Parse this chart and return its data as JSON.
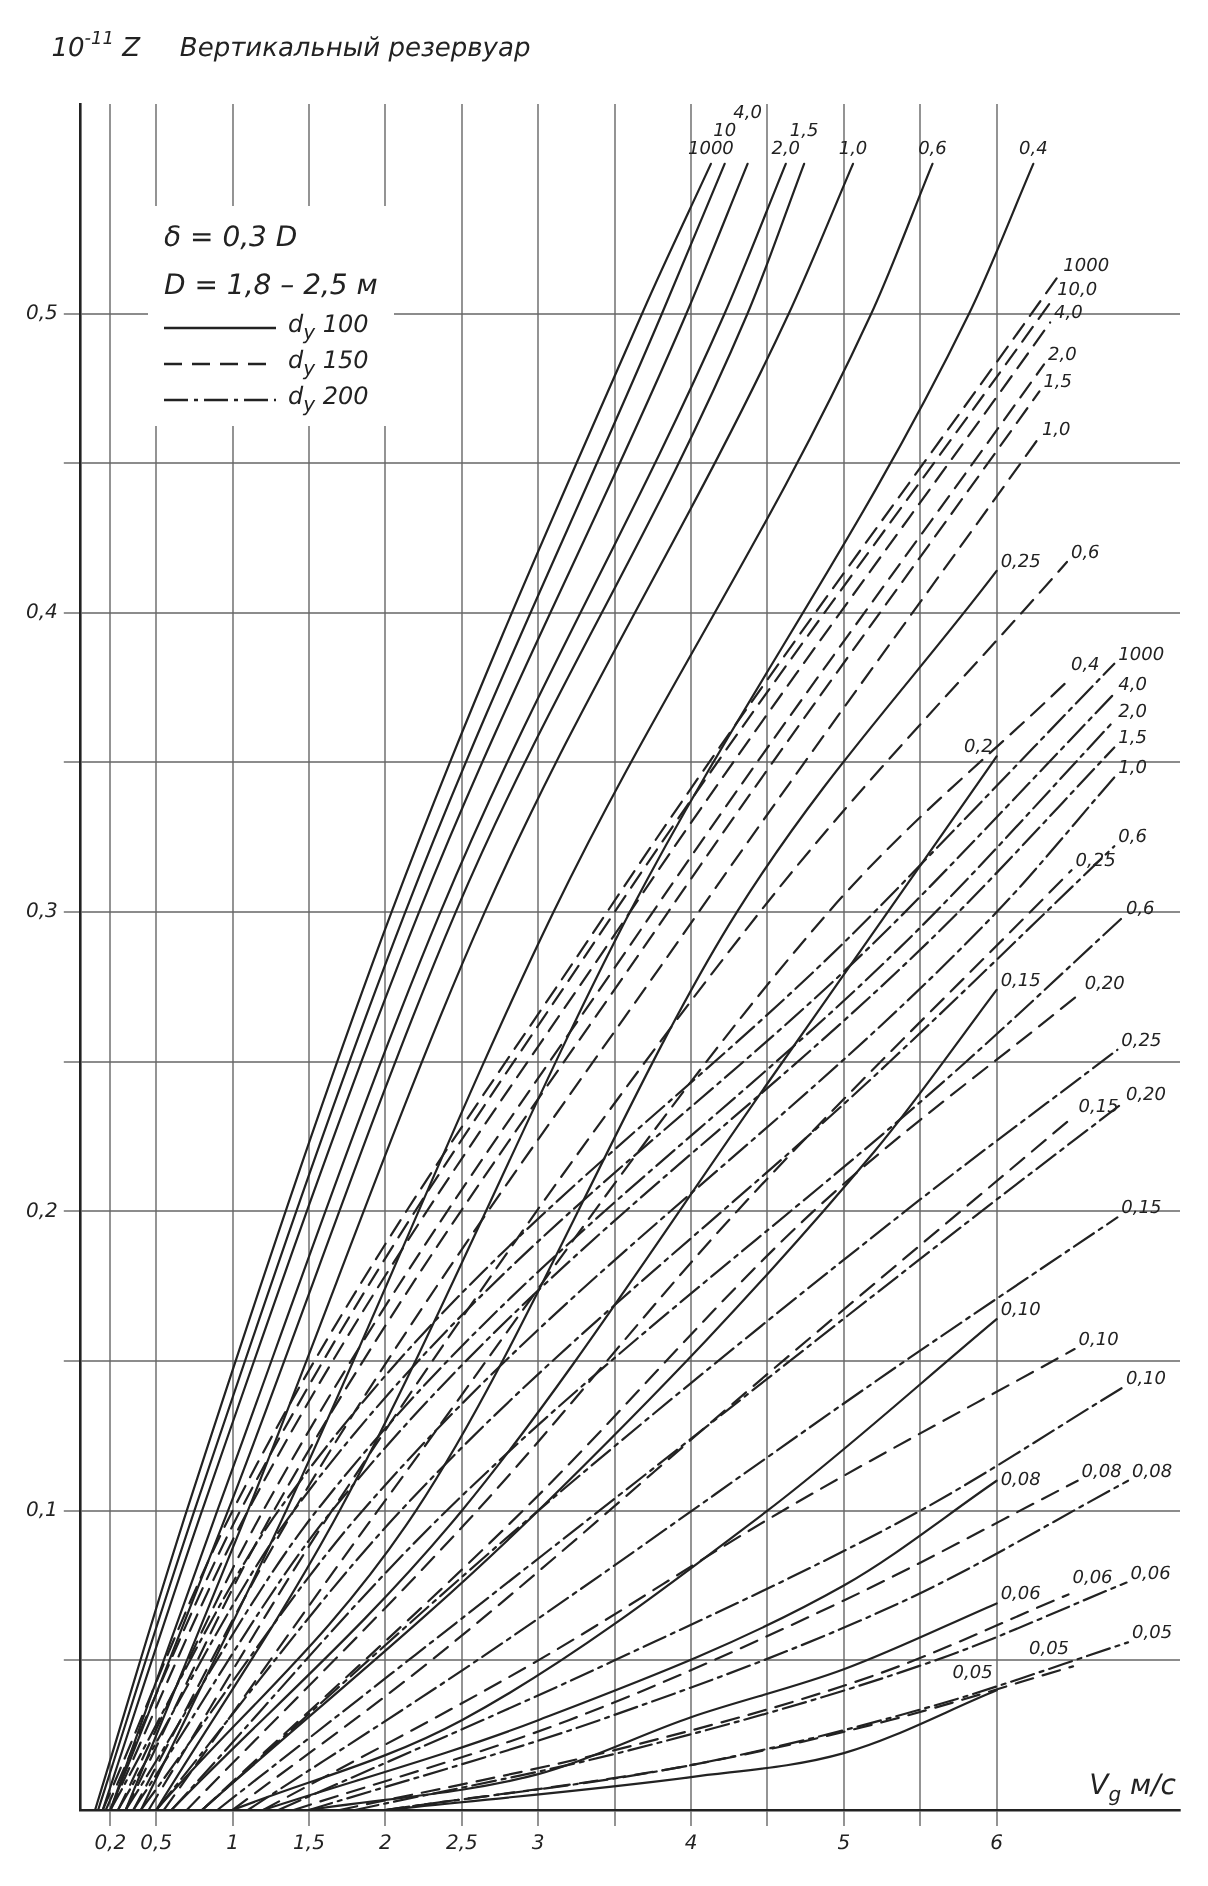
{
  "chart_data": {
    "type": "line",
    "title": "Вертикальный резервуар",
    "ylabel": "10$^{-11}$ Z",
    "xlabel": "V$_{g}$ м/с",
    "xlim": [
      0,
      7.2
    ],
    "ylim": [
      0,
      0.57
    ],
    "xticks": [
      {
        "value": 0.2,
        "label": "0,2"
      },
      {
        "value": 0.5,
        "label": "0,5"
      },
      1,
      {
        "value": 1.5,
        "label": "1,5"
      },
      2,
      {
        "value": 2.5,
        "label": "2,5"
      },
      3,
      {
        "value": 3.5,
        "label": null
      },
      4,
      {
        "value": 4.5,
        "label": null
      },
      5,
      {
        "value": 5.5,
        "label": null
      },
      6
    ],
    "yticks": [
      {
        "value": 0.05,
        "label": null
      },
      {
        "value": 0.1,
        "label": "0,1"
      },
      {
        "value": 0.15,
        "label": null
      },
      {
        "value": 0.2,
        "label": "0,2"
      },
      {
        "value": 0.25,
        "label": null
      },
      {
        "value": 0.3,
        "label": "0,3"
      },
      {
        "value": 0.35,
        "label": null
      },
      {
        "value": 0.4,
        "label": "0,4"
      },
      {
        "value": 0.45,
        "label": null
      },
      {
        "value": 0.5,
        "label": "0,5"
      }
    ],
    "grid": true,
    "marker": "none",
    "series": [
      {
        "name": "1000",
        "color": "#222222",
        "line_style": "solid",
        "x": [
          0.1,
          0.7,
          2.04,
          3.68,
          4.13
        ],
        "values": [
          0,
          0.1,
          0.3,
          0.5,
          0.55
        ]
      },
      {
        "name": "10",
        "color": "#222222",
        "line_style": "solid",
        "x": [
          0.12,
          0.75,
          2.13,
          3.81,
          4.22
        ],
        "values": [
          0,
          0.1,
          0.3,
          0.5,
          0.55
        ]
      },
      {
        "name": "4,0",
        "color": "#222222",
        "line_style": "solid",
        "x": [
          0.15,
          0.8,
          2.22,
          3.97,
          4.37
        ],
        "values": [
          0,
          0.1,
          0.3,
          0.5,
          0.55
        ]
      },
      {
        "name": "2,0",
        "color": "#222222",
        "line_style": "solid",
        "x": [
          0.2,
          0.9,
          2.36,
          4.22,
          4.62
        ],
        "values": [
          0,
          0.1,
          0.3,
          0.5,
          0.55
        ]
      },
      {
        "name": "1,5",
        "color": "#222222",
        "line_style": "solid",
        "x": [
          0.2,
          0.97,
          2.46,
          4.37,
          4.74
        ],
        "values": [
          0,
          0.1,
          0.3,
          0.5,
          0.55
        ]
      },
      {
        "name": "1,0",
        "color": "#222222",
        "line_style": "solid",
        "x": [
          0.3,
          1.1,
          2.65,
          4.64,
          5.06
        ],
        "values": [
          0,
          0.1,
          0.3,
          0.5,
          0.55
        ]
      },
      {
        "name": "0,6",
        "color": "#222222",
        "line_style": "solid",
        "x": [
          0.4,
          1.35,
          3.1,
          5.18,
          5.58
        ],
        "values": [
          0,
          0.1,
          0.3,
          0.5,
          0.55
        ]
      },
      {
        "name": "0,4",
        "color": "#222222",
        "line_style": "solid",
        "x": [
          0.5,
          1.7,
          3.6,
          5.82,
          6.24
        ],
        "values": [
          0,
          0.1,
          0.3,
          0.5,
          0.55
        ]
      },
      {
        "name": "0,25",
        "color": "#222222",
        "line_style": "solid",
        "x": [
          0.5,
          2.2,
          4.3,
          6
        ],
        "values": [
          0,
          0.1,
          0.3,
          0.414
        ]
      },
      {
        "name": "0,2",
        "color": "#222222",
        "line_style": "solid",
        "x": [
          0.6,
          2.5,
          4.6,
          6
        ],
        "values": [
          0,
          0.1,
          0.25,
          0.352
        ]
      },
      {
        "name": "0,15",
        "color": "#222222",
        "line_style": "solid",
        "x": [
          0.8,
          3,
          5.2,
          6
        ],
        "values": [
          0,
          0.1,
          0.22,
          0.274
        ]
      },
      {
        "name": "0,10",
        "color": "#222222",
        "line_style": "solid",
        "x": [
          1,
          2.5,
          4.5,
          6
        ],
        "values": [
          0,
          0.03,
          0.1,
          0.164
        ]
      },
      {
        "name": "0,08",
        "color": "#222222",
        "line_style": "solid",
        "x": [
          1.2,
          3,
          5,
          6
        ],
        "values": [
          0,
          0.03,
          0.075,
          0.11
        ]
      },
      {
        "name": "0,06",
        "color": "#222222",
        "line_style": "solid",
        "x": [
          1.5,
          3,
          4,
          5,
          6
        ],
        "values": [
          0,
          0.012,
          0.031,
          0.047,
          0.069
        ]
      },
      {
        "name": "0,05",
        "color": "#222222",
        "line_style": "solid",
        "x": [
          2,
          4,
          5,
          6
        ],
        "values": [
          0,
          0.011,
          0.019,
          0.04
        ]
      },
      {
        "name": "1000",
        "color": "#222222",
        "line_style": "dashed",
        "x": [
          0.15,
          1,
          3.45,
          6.41
        ],
        "values": [
          0,
          0.1,
          0.3,
          0.513
        ]
      },
      {
        "name": "10,0",
        "color": "#222222",
        "line_style": "dashed",
        "x": [
          0.17,
          1.05,
          3.5,
          6.37
        ],
        "values": [
          0,
          0.1,
          0.3,
          0.505
        ]
      },
      {
        "name": "4,0",
        "color": "#222222",
        "line_style": "dashed",
        "x": [
          0.2,
          1.1,
          3.6,
          6.35
        ],
        "values": [
          0,
          0.1,
          0.3,
          0.497
        ]
      },
      {
        "name": "2,0",
        "color": "#222222",
        "line_style": "dashed",
        "x": [
          0.25,
          1.2,
          3.75,
          6.31
        ],
        "values": [
          0,
          0.1,
          0.3,
          0.483
        ]
      },
      {
        "name": "1,5",
        "color": "#222222",
        "line_style": "dashed",
        "x": [
          0.3,
          1.27,
          3.85,
          6.28
        ],
        "values": [
          0,
          0.1,
          0.3,
          0.474
        ]
      },
      {
        "name": "1,0",
        "color": "#222222",
        "line_style": "dashed",
        "x": [
          0.35,
          1.4,
          4.05,
          6.27
        ],
        "values": [
          0,
          0.1,
          0.3,
          0.458
        ]
      },
      {
        "name": "0,6",
        "color": "#222222",
        "line_style": "dashed",
        "x": [
          0.45,
          1.65,
          4.45,
          6.46
        ],
        "values": [
          0,
          0.1,
          0.3,
          0.417
        ]
      },
      {
        "name": "0,4",
        "color": "#222222",
        "line_style": "dashed",
        "x": [
          0.55,
          1.95,
          4.9,
          6.46
        ],
        "values": [
          0,
          0.1,
          0.3,
          0.377
        ]
      },
      {
        "name": "0,25",
        "color": "#222222",
        "line_style": "dashed",
        "x": [
          0.7,
          2.6,
          4.3,
          6.49
        ],
        "values": [
          0,
          0.1,
          0.2,
          0.314
        ]
      },
      {
        "name": "0,20",
        "color": "#222222",
        "line_style": "dashed",
        "x": [
          0.8,
          2.9,
          4.8,
          6.55
        ],
        "values": [
          0,
          0.1,
          0.2,
          0.273
        ]
      },
      {
        "name": "0,15",
        "color": "#222222",
        "line_style": "dashed",
        "x": [
          1,
          2.3,
          4.6,
          6.51
        ],
        "values": [
          0,
          0.05,
          0.15,
          0.232
        ]
      },
      {
        "name": "0,10",
        "color": "#222222",
        "line_style": "dashed",
        "x": [
          1.2,
          3,
          4.6,
          6.51
        ],
        "values": [
          0,
          0.05,
          0.1,
          0.154
        ]
      },
      {
        "name": "0,08",
        "color": "#222222",
        "line_style": "dashed",
        "x": [
          1.4,
          3.2,
          5,
          6.53
        ],
        "values": [
          0,
          0.03,
          0.07,
          0.11
        ]
      },
      {
        "name": "0,06",
        "color": "#222222",
        "line_style": "dashed",
        "x": [
          1.7,
          3.5,
          5.2,
          6.47
        ],
        "values": [
          0,
          0.02,
          0.045,
          0.072
        ]
      },
      {
        "name": "0,05",
        "color": "#222222",
        "line_style": "dashed",
        "x": [
          2,
          4,
          5.3,
          6.5
        ],
        "values": [
          0,
          0.015,
          0.03,
          0.048
        ]
      },
      {
        "name": "1000",
        "color": "#222222",
        "line_style": "dotted",
        "x": [
          0.2,
          1.3,
          5.2,
          6.77
        ],
        "values": [
          0,
          0.1,
          0.3,
          0.383
        ]
      },
      {
        "name": "4,0",
        "color": "#222222",
        "line_style": "dotted",
        "x": [
          0.25,
          1.4,
          5.4,
          6.77
        ],
        "values": [
          0,
          0.1,
          0.3,
          0.373
        ]
      },
      {
        "name": "2,0",
        "color": "#222222",
        "line_style": "dotted",
        "x": [
          0.3,
          1.55,
          5.6,
          6.77
        ],
        "values": [
          0,
          0.1,
          0.3,
          0.364
        ]
      },
      {
        "name": "1,5",
        "color": "#222222",
        "line_style": "dotted",
        "x": [
          0.35,
          1.65,
          5.75,
          6.77
        ],
        "values": [
          0,
          0.1,
          0.3,
          0.355
        ]
      },
      {
        "name": "1,0",
        "color": "#222222",
        "line_style": "dotted",
        "x": [
          0.4,
          1.85,
          6,
          6.77
        ],
        "values": [
          0,
          0.1,
          0.3,
          0.345
        ]
      },
      {
        "name": "0,6",
        "color": "#222222",
        "line_style": "dotted",
        "x": [
          0.5,
          2.1,
          5.3,
          6.77
        ],
        "values": [
          0,
          0.1,
          0.25,
          0.322
        ]
      },
      {
        "name": "0,6",
        "color": "#222222",
        "line_style": "dotted",
        "x": [
          0.6,
          2.4,
          5.8,
          6.82
        ],
        "values": [
          0,
          0.1,
          0.25,
          0.298
        ]
      },
      {
        "name": "0,25",
        "color": "#222222",
        "line_style": "dotted",
        "x": [
          0.8,
          3,
          5.4,
          6.79
        ],
        "values": [
          0,
          0.1,
          0.2,
          0.254
        ]
      },
      {
        "name": "0,20",
        "color": "#222222",
        "line_style": "dotted",
        "x": [
          0.9,
          3.4,
          5.9,
          6.82
        ],
        "values": [
          0,
          0.1,
          0.2,
          0.236
        ]
      },
      {
        "name": "0,15",
        "color": "#222222",
        "line_style": "dotted",
        "x": [
          1.1,
          2.6,
          5.4,
          6.79
        ],
        "values": [
          0,
          0.05,
          0.15,
          0.198
        ]
      },
      {
        "name": "0,10",
        "color": "#222222",
        "line_style": "dotted",
        "x": [
          1.3,
          3.5,
          5.5,
          6.82
        ],
        "values": [
          0,
          0.05,
          0.1,
          0.141
        ]
      },
      {
        "name": "0,08",
        "color": "#222222",
        "line_style": "dotted",
        "x": [
          1.5,
          3.4,
          5.4,
          6.86
        ],
        "values": [
          0,
          0.03,
          0.07,
          0.11
        ]
      },
      {
        "name": "0,06",
        "color": "#222222",
        "line_style": "dotted",
        "x": [
          1.8,
          3.6,
          5.6,
          6.85
        ],
        "values": [
          0,
          0.02,
          0.05,
          0.076
        ]
      },
      {
        "name": "0,05",
        "color": "#222222",
        "line_style": "dotted",
        "x": [
          2,
          4,
          5.6,
          6.86
        ],
        "values": [
          0,
          0.015,
          0.035,
          0.056
        ]
      }
    ],
    "annotations": [
      "δ = 0,3 D",
      "D = 1,8 – 2,5 м",
      "d$_{y}$ 100",
      "d$_{y}$ 150",
      "d$_{y}$ 200"
    ]
  }
}
